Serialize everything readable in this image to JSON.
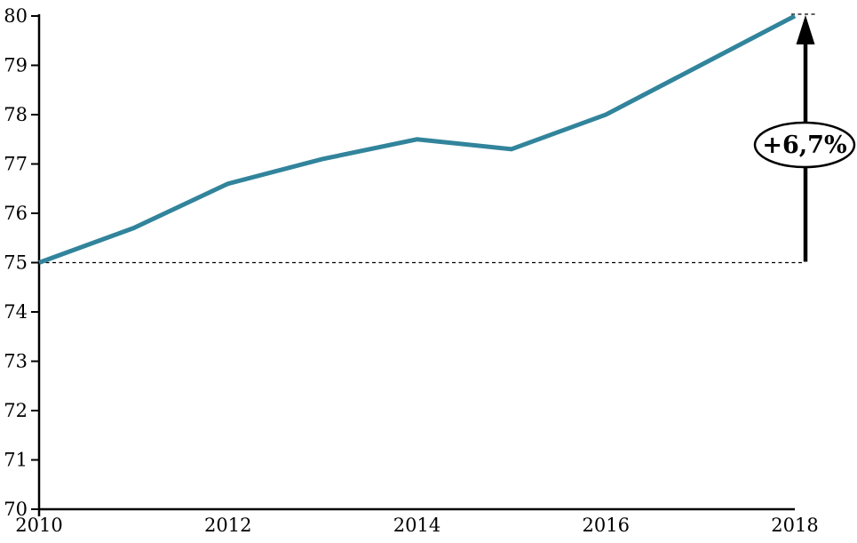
{
  "chart_data": {
    "type": "line",
    "x": [
      2010,
      2011,
      2012,
      2013,
      2014,
      2015,
      2016,
      2017,
      2018
    ],
    "values": [
      75.0,
      75.7,
      76.6,
      77.1,
      77.5,
      77.3,
      78.0,
      79.0,
      80.0
    ],
    "title": "",
    "xlabel": "",
    "ylabel": "",
    "ylim": [
      70,
      80
    ],
    "y_ticks": [
      70,
      71,
      72,
      73,
      74,
      75,
      76,
      77,
      78,
      79,
      80
    ],
    "x_tick_labels": [
      "2010",
      "2012",
      "2014",
      "2016",
      "2018"
    ],
    "grid": "off",
    "legend": "none",
    "line_color": "#31849B",
    "axis_color": "#000000",
    "annotation": {
      "label": "+6,7%",
      "baseline_value": 75,
      "arrow_from_value": 75,
      "arrow_to_value": 80,
      "ellipse_fill": "#ffffff",
      "ellipse_stroke": "#000000"
    }
  }
}
